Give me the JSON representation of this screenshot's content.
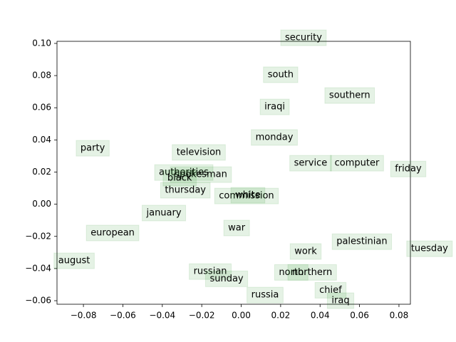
{
  "chart_data": {
    "type": "scatter",
    "labels": [
      "security",
      "south",
      "southern",
      "iraqi",
      "monday",
      "party",
      "television",
      "service",
      "computer",
      "friday",
      "authorities",
      "spokesman",
      "black",
      "thursday",
      "commission",
      "white",
      "january",
      "european",
      "war",
      "palestinian",
      "tuesday",
      "work",
      "august",
      "russian",
      "north",
      "northern",
      "sunday",
      "chief",
      "russia",
      "iraq"
    ],
    "x": [
      0.0316,
      0.02,
      0.055,
      0.017,
      0.0168,
      -0.0753,
      -0.0215,
      0.0352,
      0.0587,
      0.0847,
      -0.0291,
      -0.0204,
      -0.0312,
      -0.0283,
      0.0027,
      0.0034,
      -0.0392,
      -0.0652,
      -0.0023,
      0.0612,
      0.0955,
      0.0327,
      -0.0847,
      -0.0157,
      0.0254,
      0.036,
      -0.0074,
      0.0453,
      0.0121,
      0.0504
    ],
    "values": [
      0.1035,
      0.0805,
      0.0676,
      0.0605,
      0.0415,
      0.0348,
      0.0322,
      0.0255,
      0.0255,
      0.0219,
      0.0197,
      0.0184,
      0.0162,
      0.0087,
      0.0051,
      0.0056,
      -0.0055,
      -0.0179,
      -0.0148,
      -0.0233,
      -0.0277,
      -0.0294,
      -0.0352,
      -0.0419,
      -0.0424,
      -0.0424,
      -0.0464,
      -0.0535,
      -0.0565,
      -0.06
    ],
    "color": "#008000",
    "xlim": [
      -0.0934,
      0.0858
    ],
    "ylim": [
      -0.0622,
      0.1013
    ],
    "xticks": [
      {
        "value": -0.08,
        "label": "−0.08"
      },
      {
        "value": -0.06,
        "label": "−0.06"
      },
      {
        "value": -0.04,
        "label": "−0.04"
      },
      {
        "value": -0.02,
        "label": "−0.02"
      },
      {
        "value": 0,
        "label": "0.00"
      },
      {
        "value": 0.02,
        "label": "0.02"
      },
      {
        "value": 0.04,
        "label": "0.04"
      },
      {
        "value": 0.06,
        "label": "0.06"
      },
      {
        "value": 0.08,
        "label": "0.08"
      }
    ],
    "yticks": [
      {
        "value": -0.06,
        "label": "−0.06"
      },
      {
        "value": -0.04,
        "label": "−0.04"
      },
      {
        "value": -0.02,
        "label": "−0.02"
      },
      {
        "value": 0,
        "label": "0.00"
      },
      {
        "value": 0.02,
        "label": "0.02"
      },
      {
        "value": 0.04,
        "label": "0.04"
      },
      {
        "value": 0.06,
        "label": "0.06"
      },
      {
        "value": 0.08,
        "label": "0.08"
      },
      {
        "value": 0.1,
        "label": "0.10"
      }
    ]
  }
}
